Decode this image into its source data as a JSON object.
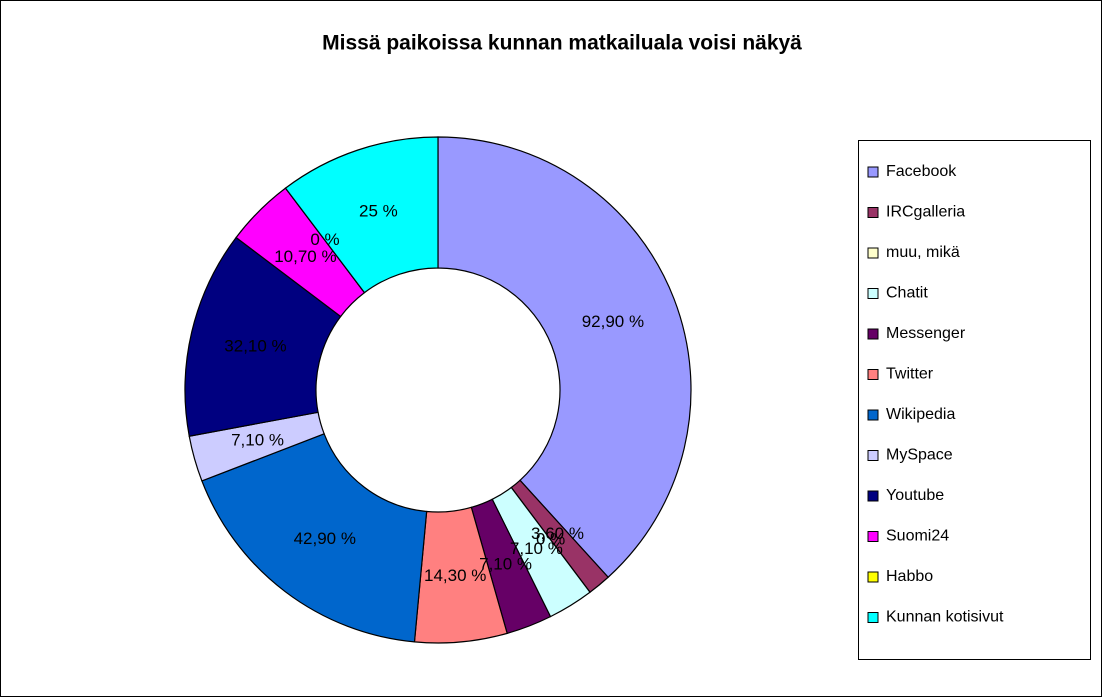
{
  "chart_data": {
    "type": "donut",
    "title": "Missä paikoissa kunnan matkailuala voisi näkyä",
    "categories": [
      "Facebook",
      "IRCgalleria",
      "muu, mikä",
      "Chatit",
      "Messenger",
      "Twitter",
      "Wikipedia",
      "MySpace",
      "Youtube",
      "Suomi24",
      "Habbo",
      "Kunnan kotisivut"
    ],
    "values": [
      92.9,
      3.6,
      0,
      7.1,
      7.1,
      14.3,
      42.9,
      7.1,
      32.1,
      10.7,
      0,
      25
    ],
    "value_labels": [
      "92,90 %",
      "3,60 %",
      "0 %",
      "7,10 %",
      "7,10 %",
      "14,30 %",
      "42,90 %",
      "7,10 %",
      "32,10 %",
      "10,70 %",
      "0 %",
      "25 %"
    ],
    "colors": [
      "#9999ff",
      "#993366",
      "#ffffcc",
      "#ccffff",
      "#660066",
      "#ff8080",
      "#0066cc",
      "#ccccff",
      "#000080",
      "#ff00ff",
      "#ffff00",
      "#00ffff"
    ],
    "legend": "right"
  }
}
